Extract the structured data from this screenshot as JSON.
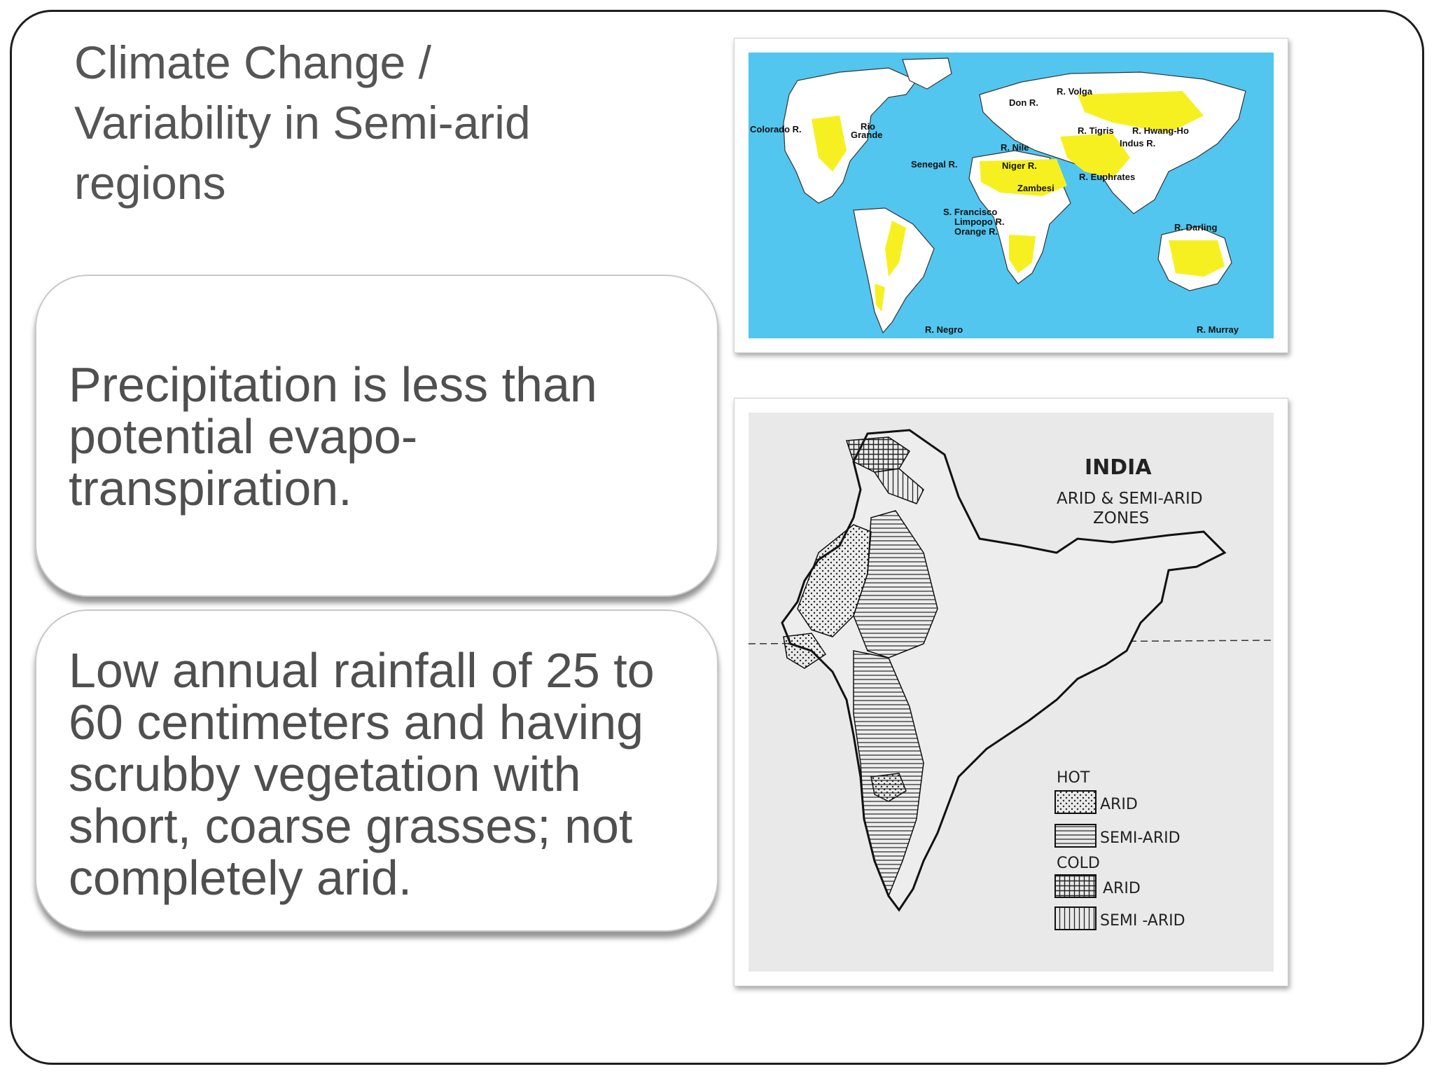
{
  "slide": {
    "title": "Climate Change / Variability in Semi-arid regions",
    "bullets": [
      "Precipitation is less than potential evapo-transpiration.",
      "Low annual rainfall of 25 to 60 centimeters and having scrubby vegetation with short, coarse grasses; not completely arid."
    ]
  },
  "world_map": {
    "colors": {
      "ocean": "#52c6ee",
      "land": "#ffffff",
      "semi_arid": "#f7f021"
    },
    "rivers": [
      "R. Volga",
      "Don R.",
      "Colorado R.",
      "Rio",
      "Grande",
      "R. Tigris",
      "R. Hwang-Ho",
      "Indus R.",
      "R. Nile",
      "Senegal R.",
      "Niger R.",
      "R. Euphrates",
      "Zambesi",
      "S. Francisco",
      "Limpopo R.",
      "Orange R.",
      "R. Darling",
      "R. Negro",
      "R. Murray"
    ]
  },
  "india_map": {
    "title": "INDIA",
    "subtitle_line1": "ARID & SEMI-ARID",
    "subtitle_line2": "ZONES",
    "legend": {
      "hot": "HOT",
      "cold": "COLD",
      "items": [
        "ARID",
        "SEMI-ARID",
        "ARID",
        "SEMI -ARID"
      ]
    }
  }
}
